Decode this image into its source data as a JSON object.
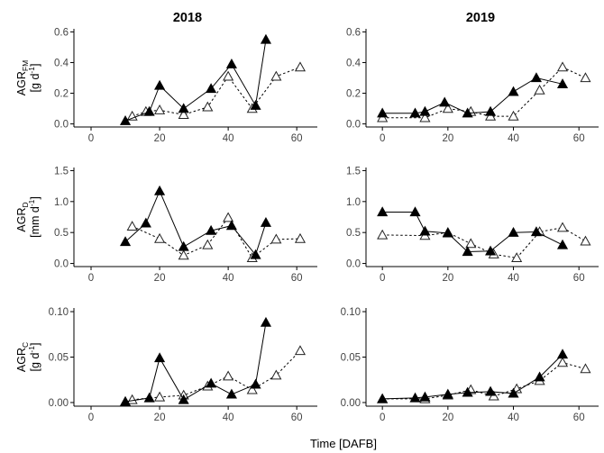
{
  "figure": {
    "column_titles": [
      "2018",
      "2019"
    ],
    "x_axis_label": "Time [DAFB]",
    "row_labels": [
      {
        "base": "AGR",
        "sub": "FM",
        "unit_pre": "[g d",
        "unit_sup": "-1",
        "unit_post": "]"
      },
      {
        "base": "AGR",
        "sub": "D",
        "unit_pre": "[mm d",
        "unit_sup": "-1",
        "unit_post": "]"
      },
      {
        "base": "AGR",
        "sub": "C",
        "unit_pre": "[g d",
        "unit_sup": "-1",
        "unit_post": "]"
      }
    ]
  },
  "chart_data": [
    {
      "type": "line",
      "title": "2018",
      "ylabel": "AGR_FM [g d-1]",
      "xlim": [
        -5,
        66
      ],
      "ylim": [
        -0.02,
        0.62
      ],
      "xticks": [
        0,
        20,
        40,
        60
      ],
      "yticks": [
        0.0,
        0.2,
        0.4,
        0.6
      ],
      "ytick_labels": [
        "0.0",
        "0.2",
        "0.4",
        "0.6"
      ],
      "series": [
        {
          "marker": "filled-triangle",
          "line": "solid",
          "x": [
            10,
            17,
            20,
            27,
            35,
            41,
            48,
            51
          ],
          "y": [
            0.02,
            0.08,
            0.25,
            0.1,
            0.23,
            0.39,
            0.12,
            0.55
          ]
        },
        {
          "marker": "open-triangle",
          "line": "dashed",
          "x": [
            12,
            16,
            20,
            27,
            34,
            40,
            47,
            54,
            61
          ],
          "y": [
            0.05,
            0.08,
            0.09,
            0.06,
            0.11,
            0.31,
            0.1,
            0.31,
            0.37
          ]
        }
      ]
    },
    {
      "type": "line",
      "title": "2019",
      "ylabel": "AGR_FM [g d-1]",
      "xlim": [
        -5,
        66
      ],
      "ylim": [
        -0.02,
        0.62
      ],
      "xticks": [
        0,
        20,
        40,
        60
      ],
      "yticks": [
        0.0,
        0.2,
        0.4,
        0.6
      ],
      "ytick_labels": [
        "0.0",
        "0.2",
        "0.4",
        "0.6"
      ],
      "series": [
        {
          "marker": "filled-triangle",
          "line": "solid",
          "x": [
            0,
            10,
            13,
            19,
            26,
            33,
            40,
            47,
            55
          ],
          "y": [
            0.07,
            0.07,
            0.08,
            0.14,
            0.07,
            0.08,
            0.21,
            0.3,
            0.26
          ]
        },
        {
          "marker": "open-triangle",
          "line": "dashed",
          "x": [
            0,
            13,
            20,
            27,
            33,
            40,
            48,
            55,
            62
          ],
          "y": [
            0.04,
            0.04,
            0.1,
            0.08,
            0.05,
            0.05,
            0.22,
            0.37,
            0.3
          ]
        }
      ]
    },
    {
      "type": "line",
      "title": "",
      "ylabel": "AGR_D [mm d-1]",
      "xlim": [
        -5,
        66
      ],
      "ylim": [
        -0.05,
        1.55
      ],
      "xticks": [
        0,
        20,
        40,
        60
      ],
      "yticks": [
        0.0,
        0.5,
        1.0,
        1.5
      ],
      "ytick_labels": [
        "0.0",
        "0.5",
        "1.0",
        "1.5"
      ],
      "series": [
        {
          "marker": "filled-triangle",
          "line": "solid",
          "x": [
            10,
            16,
            20,
            27,
            35,
            41,
            48,
            51
          ],
          "y": [
            0.35,
            0.65,
            1.17,
            0.27,
            0.53,
            0.61,
            0.14,
            0.66
          ]
        },
        {
          "marker": "open-triangle",
          "line": "dashed",
          "x": [
            12,
            20,
            27,
            34,
            40,
            47,
            54,
            61
          ],
          "y": [
            0.6,
            0.4,
            0.13,
            0.3,
            0.74,
            0.09,
            0.39,
            0.4
          ]
        }
      ]
    },
    {
      "type": "line",
      "title": "",
      "ylabel": "AGR_D [mm d-1]",
      "xlim": [
        -5,
        66
      ],
      "ylim": [
        -0.05,
        1.55
      ],
      "xticks": [
        0,
        20,
        40,
        60
      ],
      "yticks": [
        0.0,
        0.5,
        1.0,
        1.5
      ],
      "ytick_labels": [
        "0.0",
        "0.5",
        "1.0",
        "1.5"
      ],
      "series": [
        {
          "marker": "filled-triangle",
          "line": "solid",
          "x": [
            0,
            10,
            13,
            20,
            26,
            33,
            40,
            47,
            55
          ],
          "y": [
            0.83,
            0.83,
            0.52,
            0.49,
            0.19,
            0.2,
            0.5,
            0.51,
            0.3
          ]
        },
        {
          "marker": "open-triangle",
          "line": "dashed",
          "x": [
            0,
            13,
            20,
            27,
            34,
            41,
            48,
            55,
            62
          ],
          "y": [
            0.46,
            0.45,
            0.5,
            0.32,
            0.15,
            0.09,
            0.51,
            0.58,
            0.36
          ]
        }
      ]
    },
    {
      "type": "line",
      "title": "",
      "ylabel": "AGR_C [g d-1]",
      "xlim": [
        -5,
        66
      ],
      "ylim": [
        -0.004,
        0.104
      ],
      "xticks": [
        0,
        20,
        40,
        60
      ],
      "yticks": [
        0.0,
        0.05,
        0.1
      ],
      "ytick_labels": [
        "0.00",
        "0.05",
        "0.10"
      ],
      "series": [
        {
          "marker": "filled-triangle",
          "line": "solid",
          "x": [
            10,
            17,
            20,
            27,
            35,
            41,
            48,
            51
          ],
          "y": [
            0.001,
            0.005,
            0.049,
            0.003,
            0.021,
            0.009,
            0.02,
            0.088
          ]
        },
        {
          "marker": "open-triangle",
          "line": "dashed",
          "x": [
            12,
            20,
            27,
            34,
            40,
            47,
            54,
            61
          ],
          "y": [
            0.003,
            0.006,
            0.008,
            0.018,
            0.029,
            0.014,
            0.03,
            0.057
          ]
        }
      ]
    },
    {
      "type": "line",
      "title": "",
      "ylabel": "AGR_C [g d-1]",
      "xlim": [
        -5,
        66
      ],
      "ylim": [
        -0.004,
        0.104
      ],
      "xticks": [
        0,
        20,
        40,
        60
      ],
      "yticks": [
        0.0,
        0.05,
        0.1
      ],
      "ytick_labels": [
        "0.00",
        "0.05",
        "0.10"
      ],
      "series": [
        {
          "marker": "filled-triangle",
          "line": "solid",
          "x": [
            0,
            10,
            13,
            20,
            26,
            33,
            40,
            48,
            55
          ],
          "y": [
            0.004,
            0.005,
            0.006,
            0.009,
            0.011,
            0.012,
            0.01,
            0.028,
            0.053
          ]
        },
        {
          "marker": "open-triangle",
          "line": "dashed",
          "x": [
            0,
            13,
            20,
            27,
            34,
            41,
            48,
            55,
            62
          ],
          "y": [
            0.004,
            0.004,
            0.008,
            0.014,
            0.007,
            0.015,
            0.024,
            0.044,
            0.037
          ]
        }
      ]
    }
  ]
}
